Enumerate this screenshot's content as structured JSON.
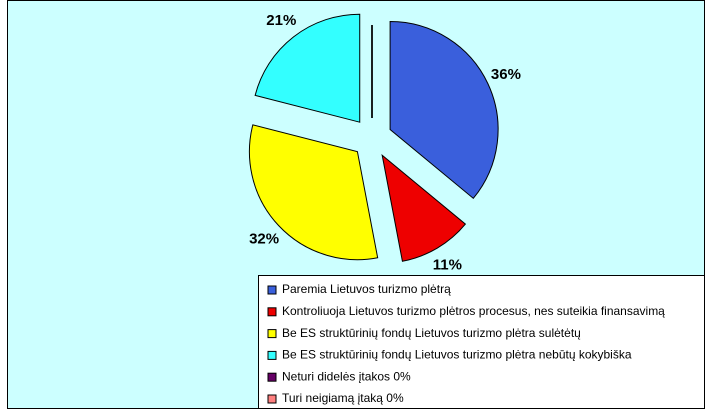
{
  "chart_data": {
    "type": "pie",
    "categories": [
      "Paremia Lietuvos turizmo plėtrą",
      "Kontroliuoja Lietuvos turizmo plėtros procesus, nes suteikia finansavimą",
      "Be ES struktūrinių fondų Lietuvos turizmo plėtra sulėtėtų",
      "Be ES struktūrinių fondų Lietuvos turizmo plėtra nebūtų kokybiška",
      "Neturi didelės įtakos 0%",
      "Turi neigiamą įtaką 0%"
    ],
    "values": [
      36,
      11,
      32,
      21,
      0,
      0
    ],
    "value_labels": [
      "36%",
      "11%",
      "32%",
      "21%",
      null,
      null
    ],
    "colors": [
      "#3a5fdc",
      "#ee0000",
      "#ffff00",
      "#33ffff",
      "#660066",
      "#ff8080"
    ]
  }
}
